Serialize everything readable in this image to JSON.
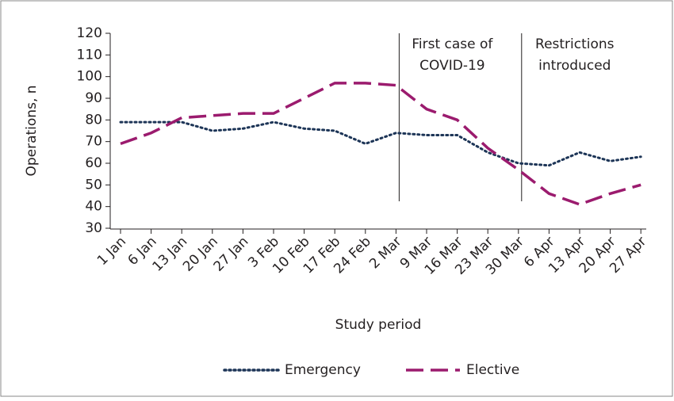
{
  "chart_data": {
    "type": "line",
    "xlabel": "Study period",
    "ylabel": "Operations, n",
    "categories": [
      "1 Jan",
      "6 Jan",
      "13 Jan",
      "20 Jan",
      "27 Jan",
      "3 Feb",
      "10 Feb",
      "17 Feb",
      "24 Feb",
      "2 Mar",
      "9 Mar",
      "16 Mar",
      "23 Mar",
      "30 Mar",
      "6 Apr",
      "13 Apr",
      "20 Apr",
      "27 Apr"
    ],
    "series": [
      {
        "name": "Emergency",
        "color": "#1d3557",
        "style": "dotted",
        "values": [
          79,
          79,
          79,
          75,
          76,
          79,
          76,
          75,
          69,
          74,
          73,
          73,
          65,
          60,
          59,
          65,
          61,
          63
        ]
      },
      {
        "name": "Elective",
        "color": "#9b1b6e",
        "style": "dashed",
        "values": [
          69,
          74,
          81,
          82,
          83,
          83,
          90,
          97,
          97,
          96,
          85,
          80,
          67,
          57,
          46,
          41,
          46,
          50
        ]
      }
    ],
    "ylim": [
      30,
      120
    ],
    "yticks": [
      30,
      40,
      50,
      60,
      70,
      80,
      90,
      100,
      110,
      120
    ],
    "annotations": [
      {
        "x": "2 Mar",
        "lines": [
          "First case of",
          "COVID-19"
        ]
      },
      {
        "x": "30 Mar",
        "lines": [
          "Restrictions",
          "introduced"
        ]
      }
    ],
    "legend": "bottom"
  }
}
